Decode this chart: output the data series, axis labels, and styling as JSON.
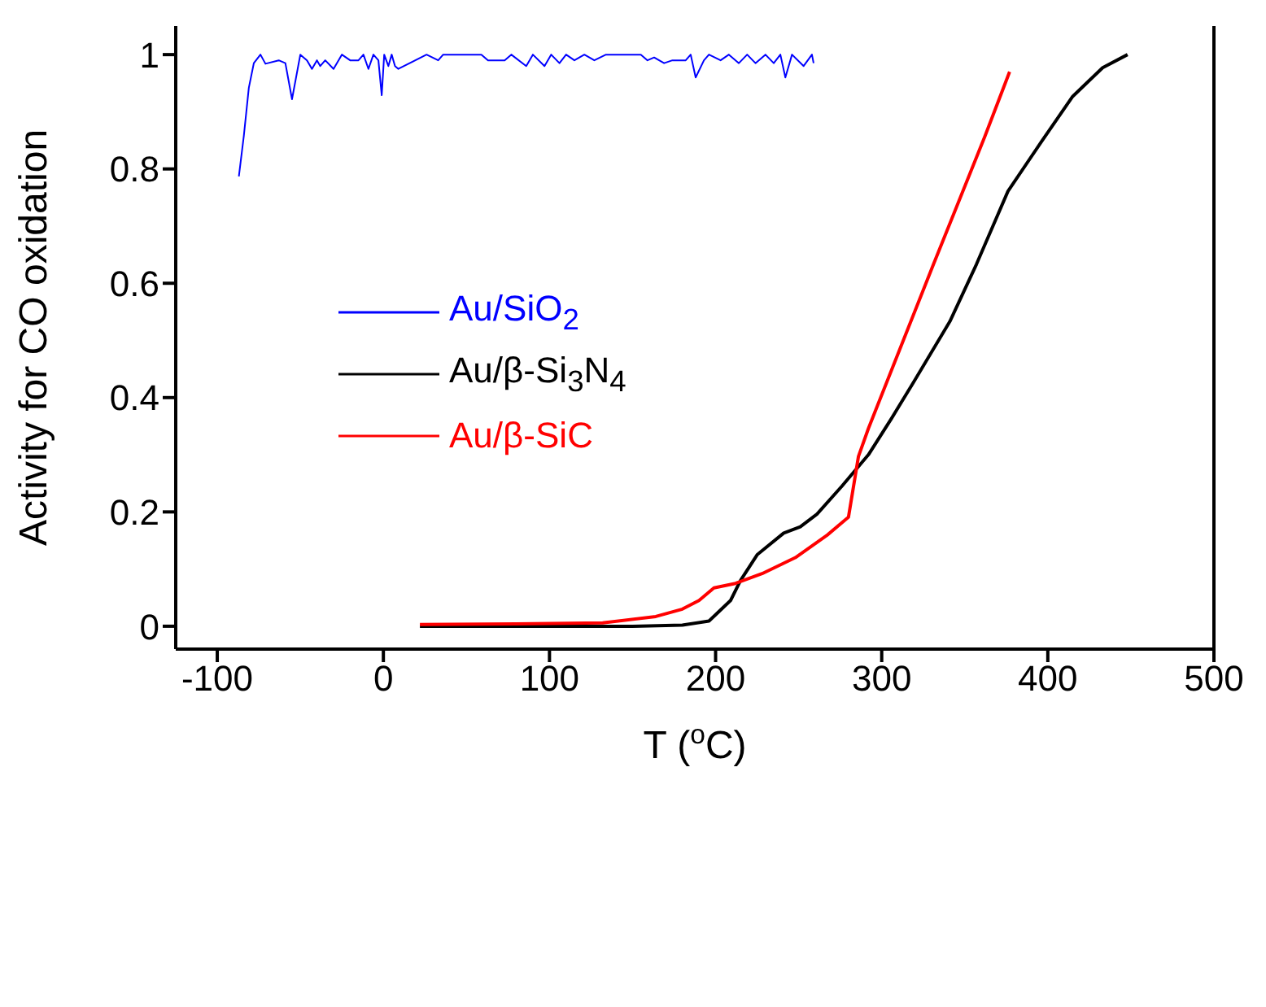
{
  "chart_data": {
    "type": "line",
    "xlabel": "T ($^{o}$C)",
    "ylabel": "Activity for CO oxidation",
    "xlim": [
      -125,
      500
    ],
    "xticks": [
      -100,
      0,
      100,
      200,
      300,
      400,
      500
    ],
    "ylim": [
      -0.04,
      1.05
    ],
    "yticks": [
      0,
      0.2,
      0.4,
      0.6,
      0.8,
      1
    ],
    "legend": "center left",
    "marker": "none",
    "line_style": "solid",
    "series": [
      {
        "name": "Au/SiO$_{2}$",
        "color": "#0000ff",
        "x": [
          -87,
          -84,
          -81,
          -78,
          -74,
          -71,
          -63,
          -59,
          -55,
          -50,
          -46,
          -43,
          -40,
          -38,
          -35,
          -30,
          -25,
          -20,
          -15,
          -12,
          -9,
          -6,
          -3,
          -1,
          0.5,
          3,
          5,
          7,
          9,
          26,
          33,
          36,
          59,
          63,
          68,
          73,
          77,
          86,
          90,
          97,
          101,
          106,
          110,
          115,
          121,
          127,
          134,
          155,
          159,
          163,
          169,
          174,
          182,
          185,
          188,
          193,
          196,
          203,
          208,
          214,
          219,
          224,
          230,
          235,
          239,
          242,
          246,
          253,
          258,
          259
        ],
        "values": [
          0.787,
          0.858,
          0.942,
          0.985,
          1.0,
          0.984,
          0.99,
          0.985,
          0.922,
          1.0,
          0.99,
          0.975,
          0.99,
          0.98,
          0.99,
          0.975,
          1.0,
          0.99,
          0.99,
          1.0,
          0.975,
          1.0,
          0.99,
          0.929,
          1.0,
          0.98,
          1.0,
          0.98,
          0.975,
          1.0,
          0.99,
          1.0,
          1.0,
          0.99,
          0.99,
          0.99,
          1.0,
          0.98,
          1.0,
          0.98,
          1.0,
          0.985,
          1.0,
          0.99,
          1.0,
          0.99,
          1.0,
          1.0,
          0.99,
          0.995,
          0.985,
          0.99,
          0.99,
          1.0,
          0.96,
          0.99,
          1.0,
          0.99,
          1.0,
          0.985,
          1.0,
          0.985,
          1.0,
          0.985,
          1.0,
          0.96,
          1.0,
          0.98,
          1.0,
          0.985
        ]
      },
      {
        "name": "Au/β-Si$_{3}$N$_{4}$",
        "color": "#000000",
        "x": [
          22,
          100,
          150,
          180,
          196,
          209,
          215,
          225,
          241,
          251,
          261,
          276,
          292,
          306,
          319,
          341,
          357,
          376,
          396,
          415,
          433,
          448
        ],
        "values": [
          0,
          0,
          0,
          0.002,
          0.009,
          0.045,
          0.08,
          0.125,
          0.163,
          0.174,
          0.196,
          0.245,
          0.3,
          0.364,
          0.426,
          0.533,
          0.633,
          0.761,
          0.847,
          0.927,
          0.977,
          1.0
        ]
      },
      {
        "name": "Au/β-SiC",
        "color": "#ff0000",
        "x": [
          22,
          80,
          132,
          164,
          180,
          190,
          199,
          212,
          228,
          248,
          267,
          280,
          286,
          292,
          331,
          362,
          377
        ],
        "values": [
          0.003,
          0.004,
          0.006,
          0.017,
          0.03,
          0.045,
          0.067,
          0.075,
          0.092,
          0.12,
          0.159,
          0.191,
          0.297,
          0.346,
          0.632,
          0.856,
          0.97
        ]
      }
    ]
  }
}
